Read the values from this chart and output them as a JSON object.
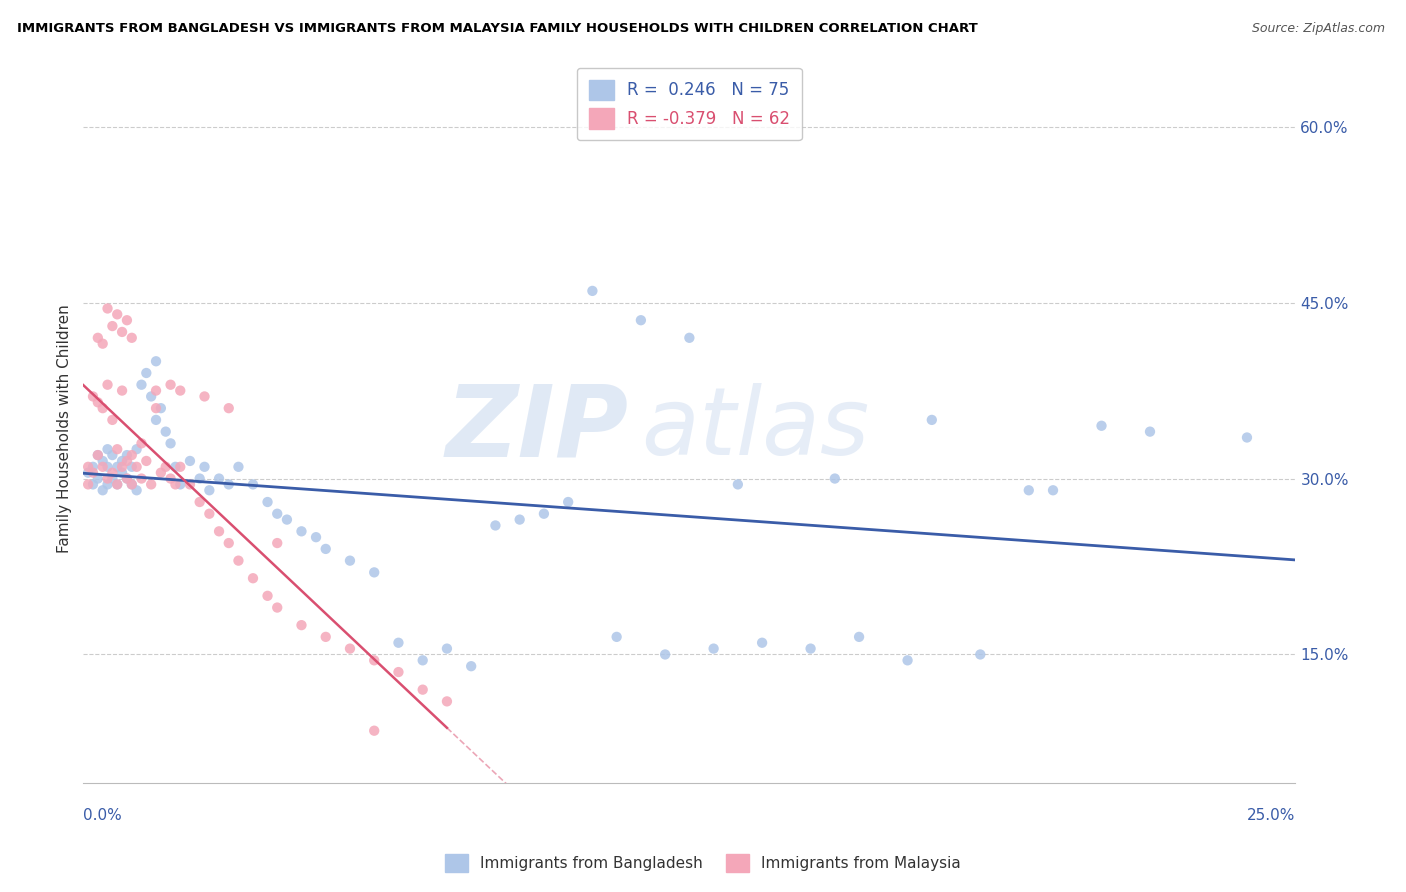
{
  "title": "IMMIGRANTS FROM BANGLADESH VS IMMIGRANTS FROM MALAYSIA FAMILY HOUSEHOLDS WITH CHILDREN CORRELATION CHART",
  "source": "Source: ZipAtlas.com",
  "ylabel": "Family Households with Children",
  "y_ticks": [
    0.15,
    0.3,
    0.45,
    0.6
  ],
  "y_tick_labels": [
    "15.0%",
    "30.0%",
    "45.0%",
    "60.0%"
  ],
  "x_min": 0.0,
  "x_max": 0.25,
  "y_min": 0.04,
  "y_max": 0.645,
  "legend_r1": "R =  0.246",
  "legend_n1": "N = 75",
  "legend_r2": "R = -0.379",
  "legend_n2": "N = 62",
  "color_bangladesh": "#aec6e8",
  "color_malaysia": "#f4a7b9",
  "color_line_bangladesh": "#3a5ca8",
  "color_line_malaysia": "#d94f70",
  "watermark_zip": "ZIP",
  "watermark_atlas": "atlas",
  "bd_x": [
    0.001,
    0.002,
    0.002,
    0.003,
    0.003,
    0.004,
    0.004,
    0.005,
    0.005,
    0.005,
    0.006,
    0.006,
    0.007,
    0.007,
    0.008,
    0.008,
    0.009,
    0.009,
    0.01,
    0.01,
    0.011,
    0.011,
    0.012,
    0.013,
    0.014,
    0.015,
    0.015,
    0.016,
    0.017,
    0.018,
    0.019,
    0.02,
    0.022,
    0.024,
    0.025,
    0.026,
    0.028,
    0.03,
    0.032,
    0.035,
    0.038,
    0.04,
    0.042,
    0.045,
    0.048,
    0.05,
    0.055,
    0.06,
    0.065,
    0.07,
    0.075,
    0.08,
    0.085,
    0.09,
    0.095,
    0.1,
    0.11,
    0.12,
    0.13,
    0.14,
    0.15,
    0.16,
    0.17,
    0.185,
    0.2,
    0.105,
    0.115,
    0.125,
    0.135,
    0.155,
    0.175,
    0.195,
    0.21,
    0.22,
    0.24
  ],
  "bd_y": [
    0.305,
    0.31,
    0.295,
    0.32,
    0.3,
    0.315,
    0.29,
    0.325,
    0.295,
    0.31,
    0.3,
    0.32,
    0.31,
    0.295,
    0.315,
    0.305,
    0.3,
    0.32,
    0.295,
    0.31,
    0.325,
    0.29,
    0.38,
    0.39,
    0.37,
    0.35,
    0.4,
    0.36,
    0.34,
    0.33,
    0.31,
    0.295,
    0.315,
    0.3,
    0.31,
    0.29,
    0.3,
    0.295,
    0.31,
    0.295,
    0.28,
    0.27,
    0.265,
    0.255,
    0.25,
    0.24,
    0.23,
    0.22,
    0.16,
    0.145,
    0.155,
    0.14,
    0.26,
    0.265,
    0.27,
    0.28,
    0.165,
    0.15,
    0.155,
    0.16,
    0.155,
    0.165,
    0.145,
    0.15,
    0.29,
    0.46,
    0.435,
    0.42,
    0.295,
    0.3,
    0.35,
    0.29,
    0.345,
    0.34,
    0.335
  ],
  "my_x": [
    0.001,
    0.001,
    0.002,
    0.002,
    0.003,
    0.003,
    0.004,
    0.004,
    0.005,
    0.005,
    0.006,
    0.006,
    0.007,
    0.007,
    0.008,
    0.008,
    0.009,
    0.009,
    0.01,
    0.01,
    0.011,
    0.012,
    0.013,
    0.014,
    0.015,
    0.016,
    0.017,
    0.018,
    0.019,
    0.02,
    0.022,
    0.024,
    0.026,
    0.028,
    0.03,
    0.032,
    0.035,
    0.038,
    0.04,
    0.045,
    0.05,
    0.055,
    0.06,
    0.065,
    0.07,
    0.075,
    0.003,
    0.004,
    0.005,
    0.006,
    0.007,
    0.008,
    0.009,
    0.01,
    0.012,
    0.015,
    0.018,
    0.02,
    0.025,
    0.03,
    0.04,
    0.06
  ],
  "my_y": [
    0.31,
    0.295,
    0.37,
    0.305,
    0.32,
    0.365,
    0.36,
    0.31,
    0.38,
    0.3,
    0.35,
    0.305,
    0.325,
    0.295,
    0.375,
    0.31,
    0.315,
    0.3,
    0.32,
    0.295,
    0.31,
    0.3,
    0.315,
    0.295,
    0.36,
    0.305,
    0.31,
    0.3,
    0.295,
    0.31,
    0.295,
    0.28,
    0.27,
    0.255,
    0.245,
    0.23,
    0.215,
    0.2,
    0.19,
    0.175,
    0.165,
    0.155,
    0.145,
    0.135,
    0.12,
    0.11,
    0.42,
    0.415,
    0.445,
    0.43,
    0.44,
    0.425,
    0.435,
    0.42,
    0.33,
    0.375,
    0.38,
    0.375,
    0.37,
    0.36,
    0.245,
    0.085
  ]
}
